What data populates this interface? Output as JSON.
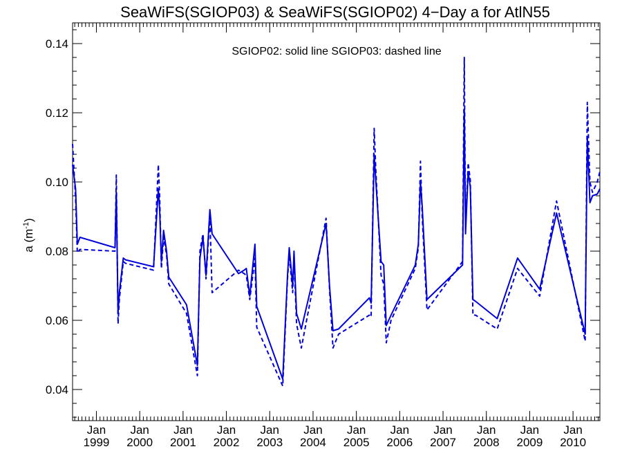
{
  "chart_data": {
    "type": "line",
    "title": "SeaWiFS(SGIOP03) & SeaWiFS(SGIOP02) 4−Day a for AtlN55",
    "annotation": "SGIOP02: solid line   SGIOP03: dashed line",
    "ylabel_main": "a (m",
    "ylabel_sup": "-1",
    "ylabel_close": ")",
    "ylim": [
      0.031,
      0.146
    ],
    "xlim": [
      1998.45,
      2010.62
    ],
    "yticks": [
      {
        "value": 0.04,
        "label": "0.04"
      },
      {
        "value": 0.06,
        "label": "0.06"
      },
      {
        "value": 0.08,
        "label": "0.08"
      },
      {
        "value": 0.1,
        "label": "0.10"
      },
      {
        "value": 0.12,
        "label": "0.12"
      },
      {
        "value": 0.14,
        "label": "0.14"
      }
    ],
    "xticks": [
      {
        "value": 1999.0,
        "month": "Jan",
        "year": "1999"
      },
      {
        "value": 2000.0,
        "month": "Jan",
        "year": "2000"
      },
      {
        "value": 2001.0,
        "month": "Jan",
        "year": "2001"
      },
      {
        "value": 2002.0,
        "month": "Jan",
        "year": "2002"
      },
      {
        "value": 2003.0,
        "month": "Jan",
        "year": "2003"
      },
      {
        "value": 2004.0,
        "month": "Jan",
        "year": "2004"
      },
      {
        "value": 2005.0,
        "month": "Jan",
        "year": "2005"
      },
      {
        "value": 2006.0,
        "month": "Jan",
        "year": "2006"
      },
      {
        "value": 2007.0,
        "month": "Jan",
        "year": "2007"
      },
      {
        "value": 2008.0,
        "month": "Jan",
        "year": "2008"
      },
      {
        "value": 2009.0,
        "month": "Jan",
        "year": "2009"
      },
      {
        "value": 2010.0,
        "month": "Jan",
        "year": "2010"
      }
    ],
    "line_color": "#0000dd",
    "series": [
      {
        "style": "solid",
        "x": [
          1998.45,
          1998.52,
          1998.56,
          1998.62,
          1999.43,
          1999.46,
          1999.5,
          1999.53,
          1999.62,
          1999.67,
          2000.32,
          2000.43,
          2000.46,
          2000.5,
          2000.55,
          2000.62,
          2000.67,
          2001.08,
          2001.33,
          2001.39,
          2001.46,
          2001.53,
          2001.62,
          2001.67,
          2002.28,
          2002.41,
          2002.46,
          2002.54,
          2002.66,
          2002.7,
          2003.3,
          2003.41,
          2003.45,
          2003.53,
          2003.56,
          2003.62,
          2003.73,
          2004.3,
          2004.38,
          2004.46,
          2004.59,
          2005.3,
          2005.34,
          2005.41,
          2005.45,
          2005.57,
          2005.63,
          2005.69,
          2005.8,
          2006.36,
          2006.43,
          2006.48,
          2006.52,
          2006.63,
          2007.45,
          2007.49,
          2007.52,
          2007.58,
          2007.63,
          2007.69,
          2007.75,
          2008.25,
          2008.72,
          2009.23,
          2009.62,
          2010.28,
          2010.33,
          2010.39,
          2010.45,
          2010.56,
          2010.62
        ],
        "y": [
          0.105,
          0.098,
          0.082,
          0.084,
          0.081,
          0.097,
          0.062,
          0.068,
          0.078,
          0.0775,
          0.0755,
          0.098,
          0.092,
          0.077,
          0.086,
          0.08,
          0.0725,
          0.0645,
          0.047,
          0.078,
          0.084,
          0.073,
          0.092,
          0.085,
          0.0735,
          0.0745,
          0.075,
          0.067,
          0.082,
          0.064,
          0.043,
          0.073,
          0.081,
          0.07,
          0.08,
          0.062,
          0.0575,
          0.088,
          0.07,
          0.057,
          0.0575,
          0.0665,
          0.065,
          0.108,
          0.1,
          0.077,
          0.076,
          0.0585,
          0.0615,
          0.076,
          0.082,
          0.1,
          0.093,
          0.066,
          0.076,
          0.121,
          0.085,
          0.103,
          0.0985,
          0.066,
          0.0655,
          0.0605,
          0.078,
          0.069,
          0.091,
          0.056,
          0.113,
          0.094,
          0.096,
          0.0965,
          0.098
        ]
      },
      {
        "style": "dashed",
        "x": [
          1998.45,
          1998.52,
          1998.56,
          1998.62,
          1999.43,
          1999.46,
          1999.5,
          1999.53,
          1999.62,
          1999.67,
          2000.32,
          2000.43,
          2000.46,
          2000.5,
          2000.55,
          2000.62,
          2000.67,
          2001.08,
          2001.33,
          2001.39,
          2001.46,
          2001.53,
          2001.62,
          2001.67,
          2002.28,
          2002.41,
          2002.46,
          2002.54,
          2002.66,
          2002.7,
          2003.3,
          2003.41,
          2003.45,
          2003.53,
          2003.56,
          2003.62,
          2003.73,
          2004.3,
          2004.38,
          2004.46,
          2004.59,
          2005.3,
          2005.34,
          2005.41,
          2005.45,
          2005.57,
          2005.63,
          2005.69,
          2005.8,
          2006.36,
          2006.43,
          2006.48,
          2006.52,
          2006.63,
          2007.45,
          2007.49,
          2007.52,
          2007.58,
          2007.63,
          2007.69,
          2007.75,
          2008.25,
          2008.72,
          2009.23,
          2009.62,
          2010.28,
          2010.33,
          2010.39,
          2010.45,
          2010.56,
          2010.62
        ],
        "y": [
          0.111,
          0.095,
          0.0795,
          0.0805,
          0.08,
          0.102,
          0.059,
          0.066,
          0.077,
          0.0765,
          0.0745,
          0.105,
          0.096,
          0.075,
          0.084,
          0.079,
          0.0705,
          0.062,
          0.044,
          0.08,
          0.085,
          0.072,
          0.09,
          0.068,
          0.0745,
          0.0735,
          0.073,
          0.066,
          0.078,
          0.058,
          0.041,
          0.072,
          0.079,
          0.068,
          0.078,
          0.059,
          0.052,
          0.0895,
          0.069,
          0.052,
          0.056,
          0.0615,
          0.061,
          0.1155,
          0.103,
          0.073,
          0.0705,
          0.0535,
          0.06,
          0.075,
          0.081,
          0.106,
          0.09,
          0.063,
          0.077,
          0.136,
          0.087,
          0.1055,
          0.1005,
          0.0615,
          0.0615,
          0.0575,
          0.075,
          0.067,
          0.0945,
          0.054,
          0.123,
          0.1,
          0.097,
          0.1,
          0.103
        ]
      }
    ]
  }
}
